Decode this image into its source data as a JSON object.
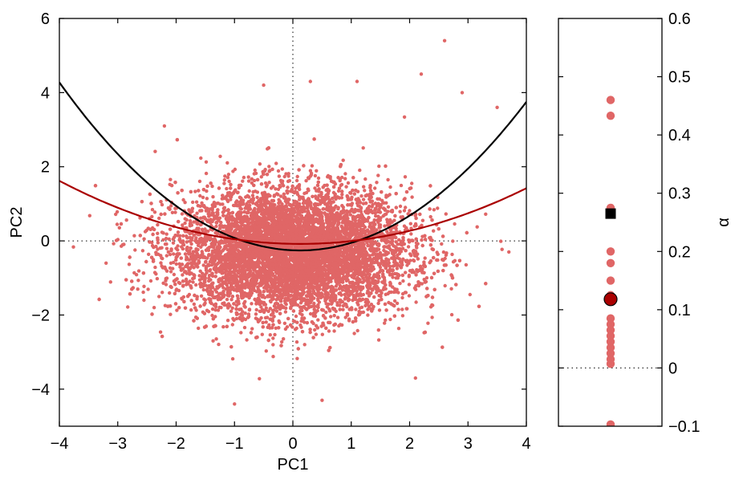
{
  "chart_data": [
    {
      "type": "scatter",
      "xlabel": "PC1",
      "ylabel": "PC2",
      "xlim": [
        -4,
        4
      ],
      "ylim": [
        -5,
        6
      ],
      "xticks": [
        -4,
        -3,
        -2,
        -1,
        0,
        1,
        2,
        3,
        4
      ],
      "yticks": [
        -4,
        -2,
        0,
        2,
        4,
        6
      ],
      "x_tick_labels": [
        "−4",
        "−3",
        "−2",
        "−1",
        "0",
        "1",
        "2",
        "3",
        "4"
      ],
      "y_tick_labels": [
        "−4",
        "−2",
        "0",
        "2",
        "4",
        "6"
      ],
      "grid": false,
      "reference_lines": {
        "x": 0,
        "y": 0,
        "style": "dotted"
      },
      "scatter": {
        "color": "#e06666",
        "distribution": {
          "x_mean": 0.0,
          "x_sd": 1.0,
          "y_mean": -0.3,
          "y_sd": 0.85
        },
        "outliers": [
          {
            "x": 2.6,
            "y": 5.4
          },
          {
            "x": 2.2,
            "y": 4.5
          },
          {
            "x": 2.9,
            "y": 4.0
          },
          {
            "x": 3.5,
            "y": 3.6
          },
          {
            "x": -0.5,
            "y": 4.2
          },
          {
            "x": 1.1,
            "y": 4.3
          },
          {
            "x": 0.3,
            "y": 4.3
          },
          {
            "x": -1.0,
            "y": -4.4
          },
          {
            "x": 0.5,
            "y": -4.3
          },
          {
            "x": 2.1,
            "y": -3.7
          },
          {
            "x": 3.7,
            "y": -0.3
          },
          {
            "x": -3.2,
            "y": -0.6
          },
          {
            "x": -2.2,
            "y": 3.1
          }
        ]
      },
      "curves": [
        {
          "color": "#000000",
          "a": 0.2666,
          "b": -0.0656,
          "c": -0.2533,
          "x_range": [
            -4,
            4
          ]
        },
        {
          "color": "#aa0000",
          "a": 0.1,
          "b": -0.025,
          "c": -0.08,
          "x_range": [
            -4,
            4
          ]
        }
      ]
    },
    {
      "type": "scatter",
      "ylabel": "α",
      "ylim": [
        -0.1,
        0.6
      ],
      "yticks": [
        -0.1,
        0,
        0.1,
        0.2,
        0.3,
        0.4,
        0.5,
        0.6
      ],
      "y_tick_labels": [
        "−0.1",
        "0",
        "0.1",
        "0.2",
        "0.3",
        "0.4",
        "0.5",
        "0.6"
      ],
      "reference_lines": {
        "y": 0,
        "style": "dotted"
      },
      "points": [
        0.46,
        0.433,
        0.275,
        0.2,
        0.18,
        0.15,
        0.125,
        0.117,
        0.085,
        0.075,
        0.065,
        0.055,
        0.045,
        0.035,
        0.025,
        0.015,
        0.007,
        -0.097
      ],
      "point_color": "#e06666",
      "markers": [
        {
          "shape": "square",
          "color": "#000000",
          "value": 0.265
        },
        {
          "shape": "circle",
          "color": "#aa0000",
          "value": 0.118
        }
      ]
    }
  ]
}
